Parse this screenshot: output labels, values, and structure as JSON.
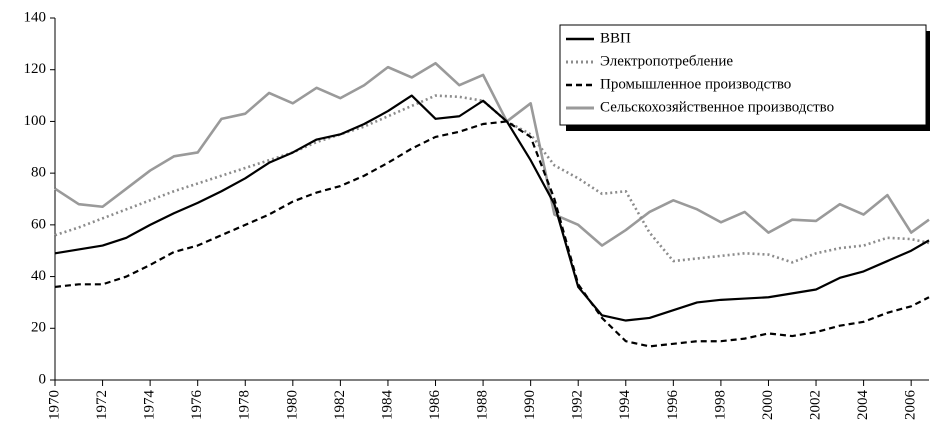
{
  "chart_data": {
    "type": "line",
    "x": [
      1970,
      1971,
      1972,
      1973,
      1974,
      1975,
      1976,
      1977,
      1978,
      1979,
      1980,
      1981,
      1982,
      1983,
      1984,
      1985,
      1986,
      1987,
      1988,
      1989,
      1990,
      1991,
      1992,
      1993,
      1994,
      1995,
      1996,
      1997,
      1998,
      1999,
      2000,
      2001,
      2002,
      2003,
      2004,
      2005,
      2006,
      2006.75
    ],
    "series": [
      {
        "name": "ВВП",
        "color": "#000000",
        "dash": "solid",
        "width": 2.2,
        "values": [
          49,
          50.5,
          52,
          55,
          60,
          64.5,
          68.5,
          73,
          78,
          84,
          88,
          93,
          95,
          99,
          104,
          110,
          101,
          102,
          108,
          100,
          85,
          68,
          36,
          25,
          23,
          24,
          27,
          30,
          31,
          31.5,
          32,
          33.5,
          35,
          39.5,
          42,
          46,
          50,
          54
        ]
      },
      {
        "name": "Электропотребление",
        "color": "#8c8c8c",
        "dash": "dotted",
        "width": 2.6,
        "values": [
          56,
          59,
          62.5,
          66,
          69.5,
          73,
          76,
          79,
          82,
          85,
          88,
          92,
          95,
          98,
          102,
          106,
          110,
          109.5,
          108,
          100,
          95,
          83,
          78,
          72,
          73,
          57,
          46,
          47,
          48,
          49,
          48.5,
          45.5,
          49,
          51,
          52,
          55,
          54.5,
          53
        ]
      },
      {
        "name": "Промышленное производство",
        "color": "#000000",
        "dash": "dashed",
        "width": 2.2,
        "values": [
          36,
          37,
          37,
          40,
          44.5,
          49.5,
          52,
          56,
          60,
          64,
          69,
          72.5,
          75,
          79,
          84,
          89.5,
          94,
          96,
          99,
          100,
          94,
          70,
          37,
          24,
          15,
          13,
          14,
          15,
          15,
          16,
          18,
          17,
          18.5,
          21,
          22.5,
          26,
          28.5,
          32
        ]
      },
      {
        "name": "Сельскохозяйственное производство",
        "color": "#9a9a9a",
        "dash": "solid",
        "width": 2.6,
        "values": [
          74,
          68,
          67,
          74,
          81,
          86.5,
          88,
          101,
          103,
          111,
          107,
          113,
          109,
          114,
          121,
          117,
          122.5,
          114,
          118,
          100,
          107,
          64,
          60,
          52,
          58,
          65,
          69.5,
          66,
          61,
          65,
          57,
          62,
          61.5,
          68,
          64,
          71.5,
          57,
          62
        ]
      }
    ],
    "xlim": [
      1970,
      2006.75
    ],
    "xticks": [
      1970,
      1972,
      1974,
      1976,
      1978,
      1980,
      1982,
      1984,
      1986,
      1988,
      1990,
      1992,
      1994,
      1996,
      1998,
      2000,
      2002,
      2004,
      2006
    ],
    "ylim": [
      0,
      140
    ],
    "yticks": [
      0,
      20,
      40,
      60,
      80,
      100,
      120,
      140
    ],
    "grid": false,
    "legend": "upper right"
  }
}
